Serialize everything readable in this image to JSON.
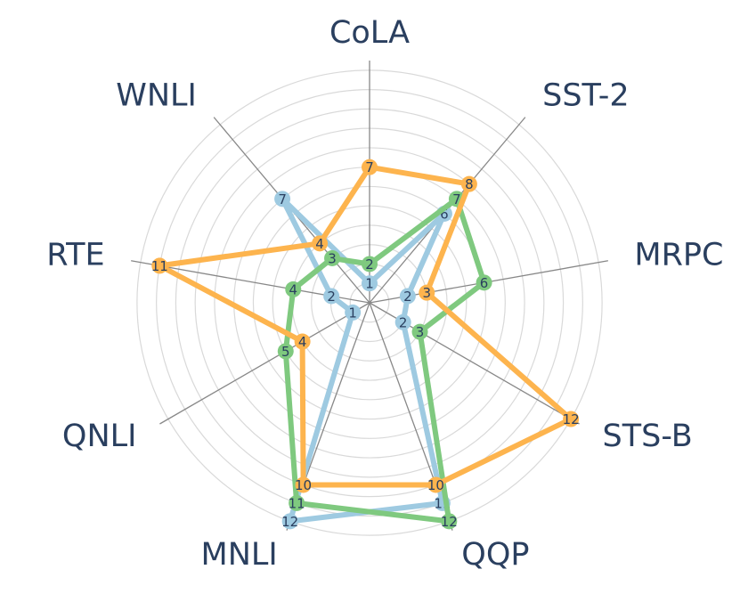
{
  "chart_data": {
    "type": "radar",
    "axes": [
      "CoLA",
      "SST-2",
      "MRPC",
      "STS-B",
      "QQP",
      "MNLI",
      "QNLI",
      "RTE",
      "WNLI"
    ],
    "rlim": [
      0,
      12.5
    ],
    "grid": true,
    "legend": "none",
    "series": [
      {
        "color": "#9ecae1",
        "values": [
          1,
          6,
          2,
          2,
          11,
          12,
          1,
          2,
          7
        ]
      },
      {
        "color": "#7fc97f",
        "values": [
          2,
          7,
          6,
          3,
          12,
          11,
          5,
          4,
          3
        ]
      },
      {
        "color": "#fdb44e",
        "values": [
          7,
          8,
          3,
          12,
          10,
          10,
          4,
          11,
          4
        ]
      }
    ]
  }
}
